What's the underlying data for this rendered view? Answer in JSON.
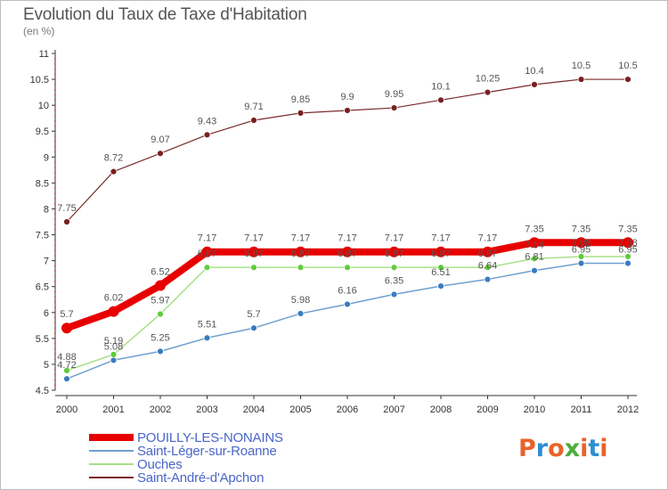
{
  "title": "Evolution du Taux de Taxe d'Habitation",
  "unit": "(en %)",
  "logo": {
    "text": "Proxiti",
    "colors": [
      "#e8632a",
      "#2c8fd1",
      "#e8632a",
      "#4aae3a",
      "#e8632a",
      "#2c8fd1",
      "#e8632a"
    ]
  },
  "chart_data": {
    "type": "line",
    "x": [
      "2000",
      "2001",
      "2002",
      "2003",
      "2004",
      "2005",
      "2006",
      "2007",
      "2008",
      "2009",
      "2010",
      "2011",
      "2012"
    ],
    "ylim": [
      4.5,
      11
    ],
    "yticks": [
      "4.5",
      "5",
      "5.5",
      "6",
      "6.5",
      "7",
      "7.5",
      "8",
      "8.5",
      "9",
      "9.5",
      "10",
      "10.5",
      "11"
    ],
    "grid": false,
    "legend_position": "bottom-left",
    "series": [
      {
        "name": "POUILLY-LES-NONAINS",
        "color": "#e80000",
        "width": 8,
        "marker": 6,
        "values": [
          5.7,
          6.02,
          6.52,
          7.17,
          7.17,
          7.17,
          7.17,
          7.17,
          7.17,
          7.17,
          7.35,
          7.35,
          7.35
        ],
        "labels": [
          "5.7",
          "6.02",
          "6.52",
          "7.17",
          "7.17",
          "7.17",
          "7.17",
          "7.17",
          "7.17",
          "7.17",
          "7.35",
          "7.35",
          "7.35"
        ]
      },
      {
        "name": "Saint-Léger-sur-Roanne",
        "color": "#6fa0cf",
        "width": 1.5,
        "marker": 3.5,
        "marker_color": "#3a7cc0",
        "values": [
          4.72,
          5.08,
          5.25,
          5.51,
          5.7,
          5.98,
          6.16,
          6.35,
          6.51,
          6.64,
          6.81,
          6.95,
          6.95
        ],
        "labels": [
          "4.72",
          "5.08",
          "5.25",
          "5.51",
          "5.7",
          "5.98",
          "6.16",
          "6.35",
          "6.51",
          "6.64",
          "6.81",
          "6.95",
          "6.95"
        ]
      },
      {
        "name": "Ouches",
        "color": "#a8e08a",
        "width": 1.5,
        "marker": 3.5,
        "marker_color": "#5fcc3a",
        "values": [
          4.88,
          5.19,
          5.97,
          6.87,
          6.87,
          6.87,
          6.87,
          6.87,
          6.87,
          6.87,
          7.04,
          7.08,
          7.08
        ],
        "labels": [
          "4.88",
          "5.19",
          "5.97",
          "6.87",
          "6.87",
          "6.87",
          "6.87",
          "6.87",
          "6.87",
          "6.87",
          "7.04",
          "7.08",
          "7.08"
        ]
      },
      {
        "name": "Saint-André-d'Apchon",
        "color": "#7a2a2a",
        "width": 1.2,
        "marker": 3.5,
        "marker_color": "#7a1f1f",
        "values": [
          7.75,
          8.72,
          9.07,
          9.43,
          9.71,
          9.85,
          9.9,
          9.95,
          10.1,
          10.25,
          10.4,
          10.5,
          10.5
        ],
        "labels": [
          "7.75",
          "8.72",
          "9.07",
          "9.43",
          "9.71",
          "9.85",
          "9.9",
          "9.95",
          "10.1",
          "10.25",
          "10.4",
          "10.5",
          "10.5"
        ]
      }
    ]
  }
}
